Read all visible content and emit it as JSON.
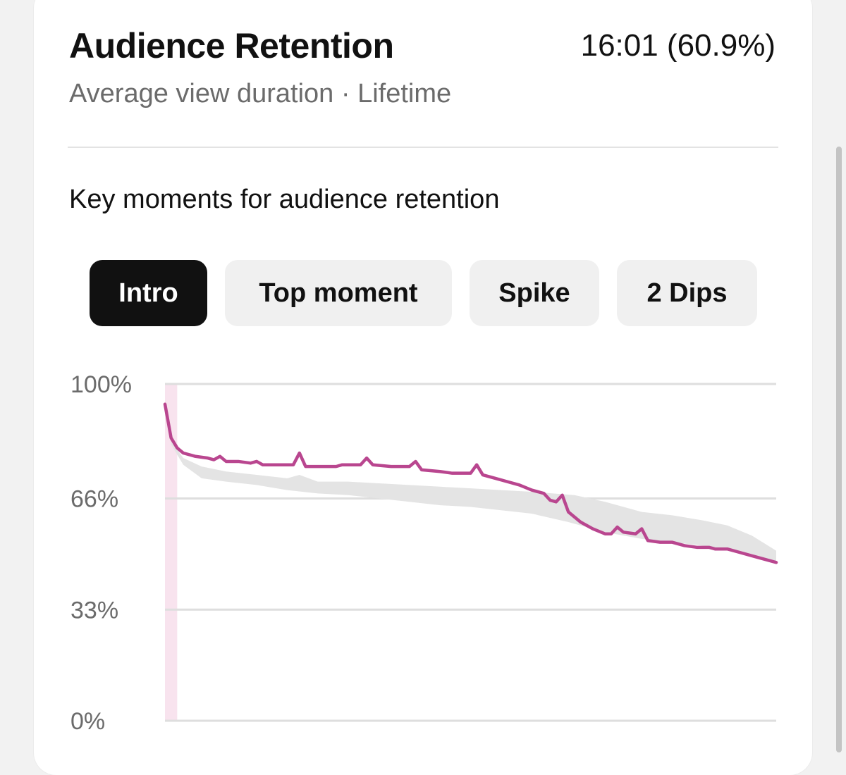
{
  "header": {
    "title": "Audience Retention",
    "value": "16:01 (60.9%)",
    "subtitle": "Average view duration · Lifetime"
  },
  "section": {
    "title": "Key moments for audience retention"
  },
  "chips": [
    {
      "label": "Intro",
      "active": true
    },
    {
      "label": "Top moment",
      "active": false
    },
    {
      "label": "Spike",
      "active": false
    },
    {
      "label": "2 Dips",
      "active": false
    }
  ],
  "colors": {
    "retention_line": "#b9468f",
    "typical_band": "#e4e4e4",
    "intro_highlight": "#f8e3ee",
    "gridline": "#dedede",
    "active_chip": "#111111"
  },
  "chart_data": {
    "type": "line",
    "xlabel": "",
    "ylabel": "",
    "y_tick_labels": [
      "100%",
      "66%",
      "33%",
      "0%"
    ],
    "y_ticks": [
      100,
      66,
      33,
      0
    ],
    "ylim": [
      0,
      100
    ],
    "xlim": [
      0,
      100
    ],
    "highlight_range": [
      0,
      2
    ],
    "series": [
      {
        "role": "retention",
        "values": [
          [
            0,
            94
          ],
          [
            1,
            84
          ],
          [
            2,
            81
          ],
          [
            3,
            79.5
          ],
          [
            5,
            78.5
          ],
          [
            7,
            78
          ],
          [
            8,
            77.5
          ],
          [
            9,
            78.5
          ],
          [
            10,
            77
          ],
          [
            12,
            77
          ],
          [
            14,
            76.5
          ],
          [
            15,
            77
          ],
          [
            16,
            76
          ],
          [
            18,
            76
          ],
          [
            20,
            76
          ],
          [
            21,
            76
          ],
          [
            22,
            79.5
          ],
          [
            23,
            75.5
          ],
          [
            26,
            75.5
          ],
          [
            28,
            75.5
          ],
          [
            29,
            76
          ],
          [
            32,
            76
          ],
          [
            33,
            78
          ],
          [
            34,
            76
          ],
          [
            37,
            75.5
          ],
          [
            40,
            75.5
          ],
          [
            41,
            77
          ],
          [
            42,
            74.5
          ],
          [
            45,
            74
          ],
          [
            47,
            73.5
          ],
          [
            50,
            73.5
          ],
          [
            51,
            76
          ],
          [
            52,
            73
          ],
          [
            54,
            72
          ],
          [
            56,
            71
          ],
          [
            58,
            70
          ],
          [
            60,
            68.5
          ],
          [
            62,
            67.5
          ],
          [
            63,
            65.5
          ],
          [
            64,
            65
          ],
          [
            65,
            67
          ],
          [
            66,
            62
          ],
          [
            68,
            59
          ],
          [
            70,
            57
          ],
          [
            72,
            55.5
          ],
          [
            73,
            55.5
          ],
          [
            74,
            57.5
          ],
          [
            75,
            56
          ],
          [
            77,
            55.5
          ],
          [
            78,
            57
          ],
          [
            79,
            53.5
          ],
          [
            81,
            53
          ],
          [
            83,
            53
          ],
          [
            85,
            52
          ],
          [
            87,
            51.5
          ],
          [
            89,
            51.5
          ],
          [
            90,
            51
          ],
          [
            92,
            51
          ],
          [
            94,
            50
          ],
          [
            96,
            49
          ],
          [
            98,
            48
          ],
          [
            100,
            47
          ]
        ]
      },
      {
        "role": "typical_range",
        "upper": [
          [
            1,
            83
          ],
          [
            3,
            78
          ],
          [
            6,
            75.5
          ],
          [
            10,
            74
          ],
          [
            15,
            73
          ],
          [
            20,
            72
          ],
          [
            22,
            73
          ],
          [
            25,
            71
          ],
          [
            30,
            71
          ],
          [
            35,
            70.5
          ],
          [
            40,
            70
          ],
          [
            45,
            69.5
          ],
          [
            50,
            69
          ],
          [
            55,
            68.5
          ],
          [
            60,
            68
          ],
          [
            67,
            67
          ],
          [
            72,
            65
          ],
          [
            78,
            62
          ],
          [
            83,
            61
          ],
          [
            88,
            59.5
          ],
          [
            92,
            58
          ],
          [
            96,
            55
          ],
          [
            100,
            50.5
          ]
        ],
        "lower": [
          [
            1,
            82
          ],
          [
            3,
            76
          ],
          [
            6,
            72
          ],
          [
            10,
            71
          ],
          [
            15,
            70
          ],
          [
            20,
            68.5
          ],
          [
            25,
            67.5
          ],
          [
            30,
            67
          ],
          [
            35,
            66
          ],
          [
            40,
            65
          ],
          [
            45,
            64
          ],
          [
            50,
            63.5
          ],
          [
            55,
            62.5
          ],
          [
            60,
            61.5
          ],
          [
            66,
            59
          ],
          [
            72,
            56
          ],
          [
            78,
            54
          ],
          [
            83,
            53
          ],
          [
            88,
            52
          ],
          [
            92,
            51
          ],
          [
            96,
            49.5
          ],
          [
            100,
            47
          ]
        ]
      }
    ]
  }
}
